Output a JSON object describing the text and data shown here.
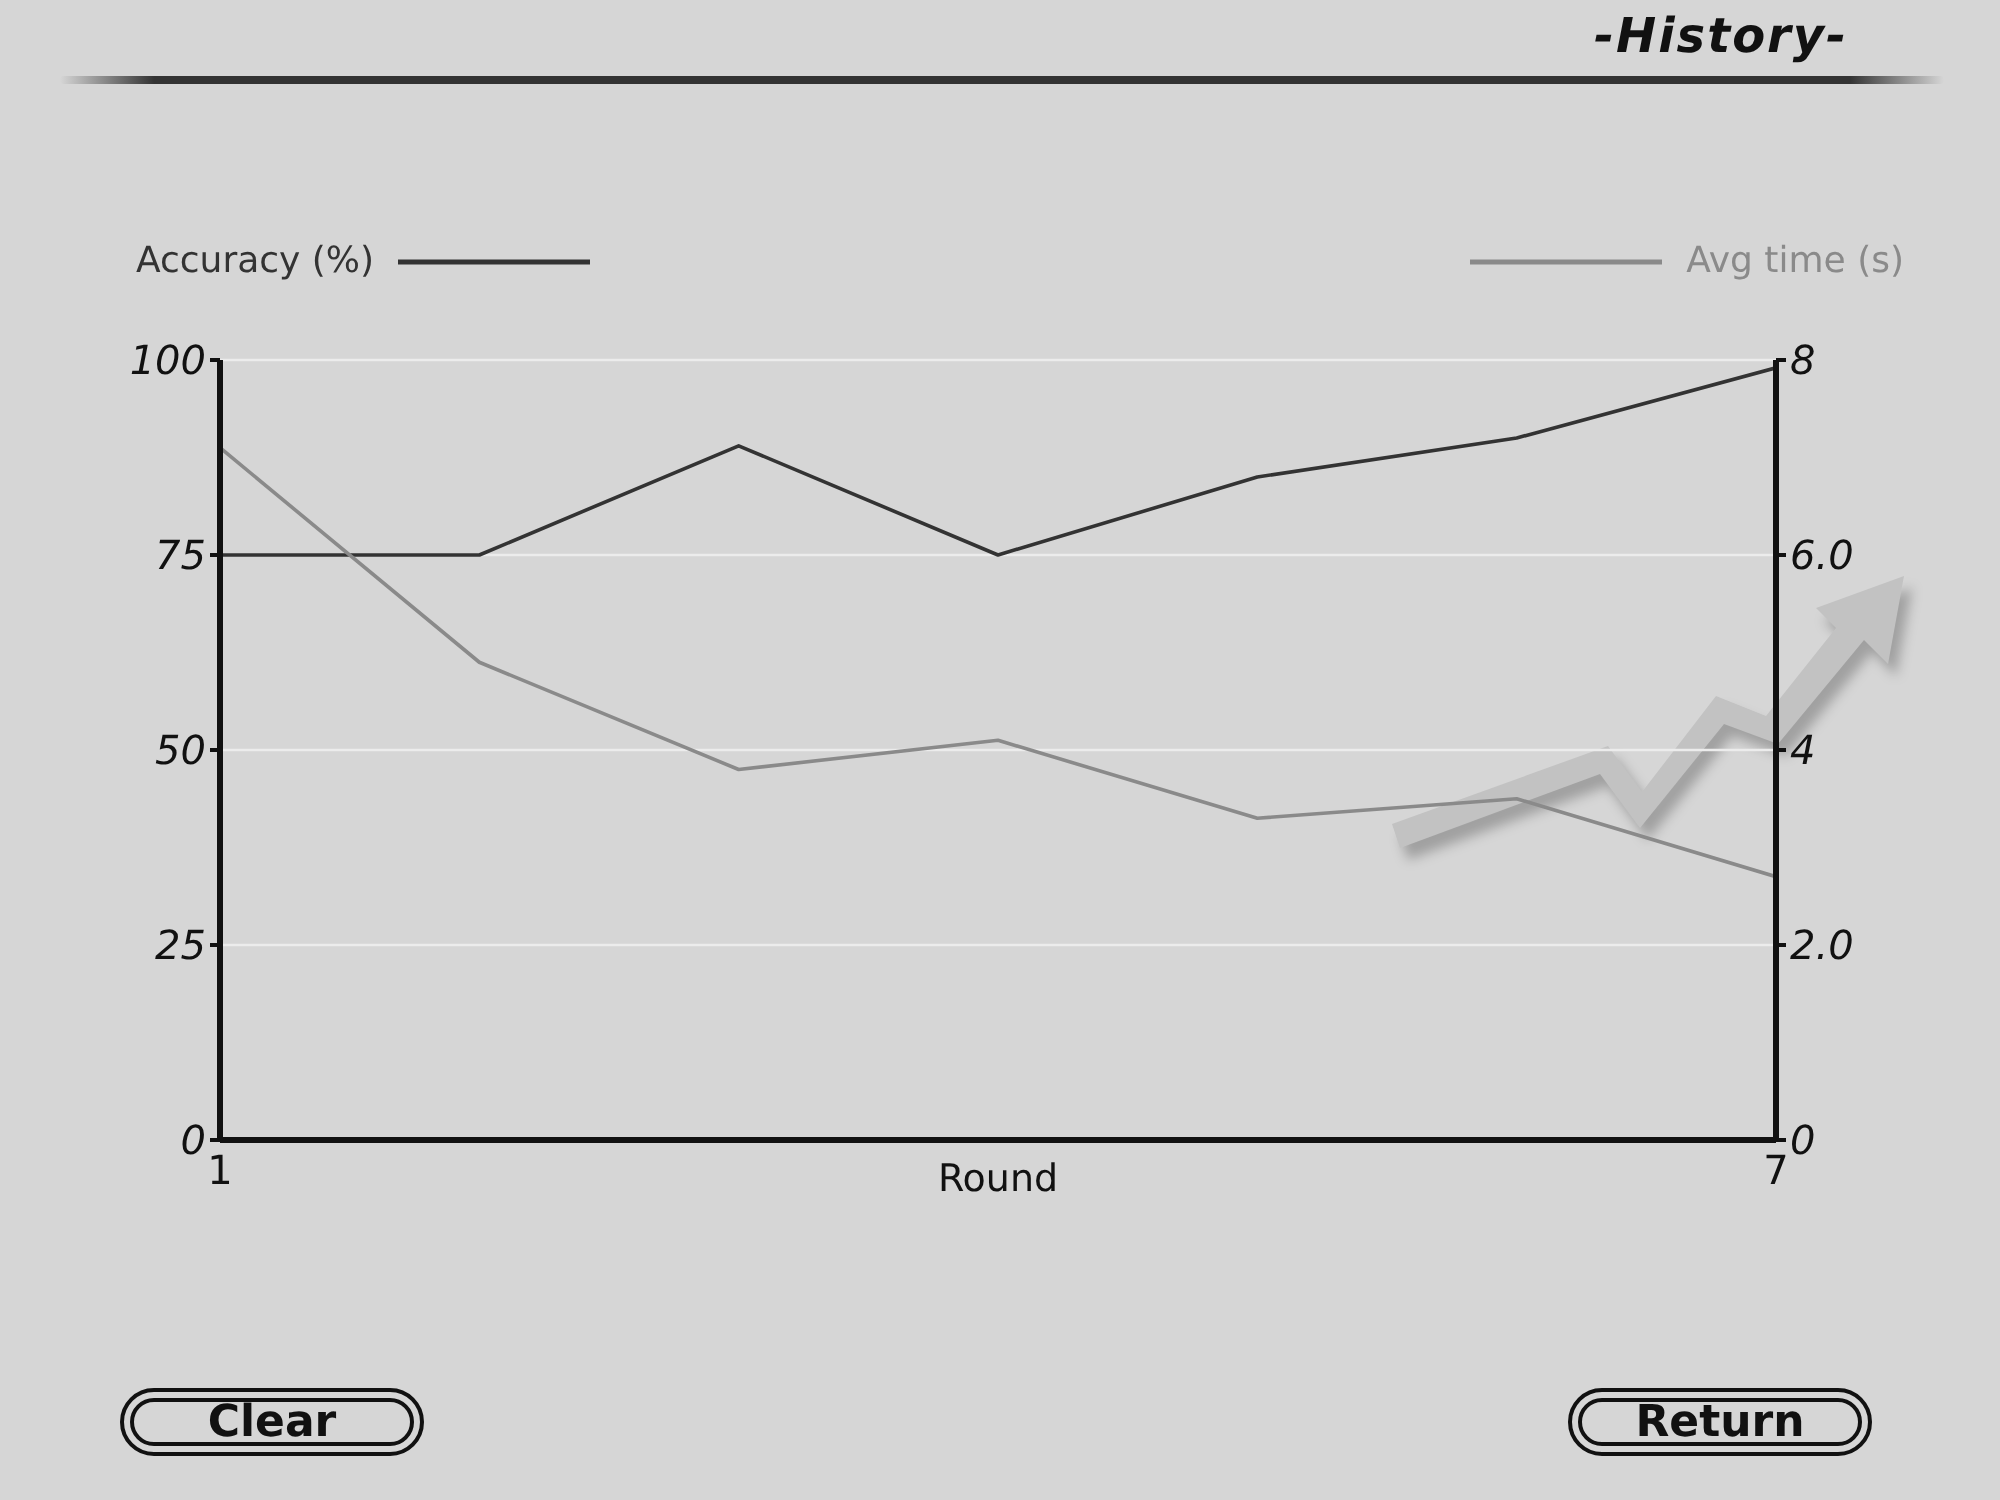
{
  "chart_data": {
    "type": "line",
    "title": "-History-",
    "xlabel": "Round",
    "x": [
      1,
      2,
      3,
      4,
      5,
      6,
      7
    ],
    "series": [
      {
        "name": "Accuracy (%)",
        "color": "#333333",
        "values": [
          75,
          75,
          89,
          75,
          85,
          90,
          99
        ]
      },
      {
        "name": "Avg time (s)",
        "color": "#8a8a8a",
        "axis": "y2",
        "values": [
          7.1,
          4.9,
          3.8,
          4.1,
          3.3,
          3.5,
          2.7
        ]
      }
    ],
    "xlim": [
      1,
      7
    ],
    "xticks": [
      1,
      7
    ],
    "ylim": [
      0,
      100
    ],
    "yticks": [
      0,
      25,
      50,
      75,
      100
    ],
    "y2lim": [
      0,
      8
    ],
    "y2ticks": [
      0,
      {
        "value": 2,
        "label": "2.0"
      },
      4,
      {
        "value": 6,
        "label": "6.0"
      },
      8
    ],
    "grid": "y",
    "legend": "top",
    "marker": "none",
    "line_style": "solid",
    "annotations": [
      "Clear",
      "Return"
    ]
  }
}
